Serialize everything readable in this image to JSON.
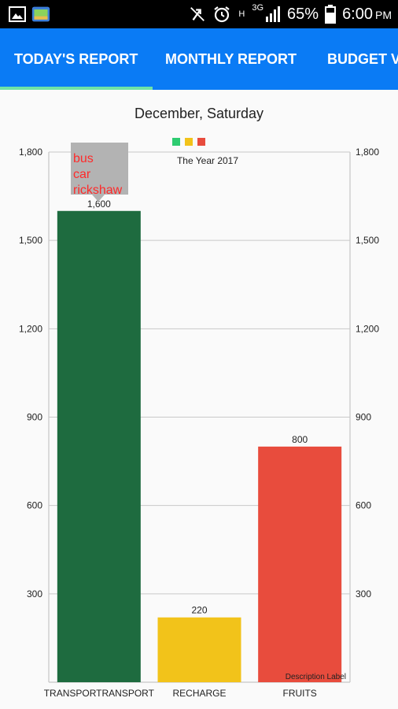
{
  "status_bar": {
    "battery": "65%",
    "time": "6:00",
    "ampm": "PM",
    "network": "3G",
    "network_h": "H",
    "icons": [
      "image-icon",
      "gallery-app-icon",
      "mute-icon",
      "alarm-icon",
      "signal-icon",
      "battery-icon"
    ]
  },
  "tabs": [
    {
      "label": "TODAY'S REPORT",
      "selected": true
    },
    {
      "label": "MONTHLY REPORT",
      "selected": false
    },
    {
      "label": "BUDGET V",
      "selected": false
    }
  ],
  "colors": {
    "tab_bar": "#0a7bf5",
    "indicator": "#6fe3a6",
    "transport": "#1e6b3f",
    "recharge": "#f2c31a",
    "fruits": "#e84c3d",
    "marker_text": "#ff2a2a"
  },
  "chart_data": {
    "type": "bar",
    "title": "December, Saturday",
    "categories": [
      "TRANSPORTRANSPORT",
      "RECHARGE",
      "FRUITS"
    ],
    "values": [
      1600,
      220,
      800
    ],
    "value_labels": [
      "1,600",
      "220",
      "800"
    ],
    "colors": [
      "#1e6b3f",
      "#f2c31a",
      "#e84c3d"
    ],
    "legend_label": "The Year 2017",
    "legend_colors": [
      "#2ecc71",
      "#f2c31a",
      "#e84c3d"
    ],
    "legend_placement": "top-center",
    "ylim": [
      0,
      1800
    ],
    "yticks": [
      300,
      600,
      900,
      1200,
      1500,
      1800
    ],
    "ytick_labels": [
      "300",
      "600",
      "900",
      "1,200",
      "1,500",
      "1,800"
    ],
    "grid": true,
    "description": "Description Label",
    "marker_items": [
      "bus",
      "car",
      "rickshaw"
    ]
  }
}
